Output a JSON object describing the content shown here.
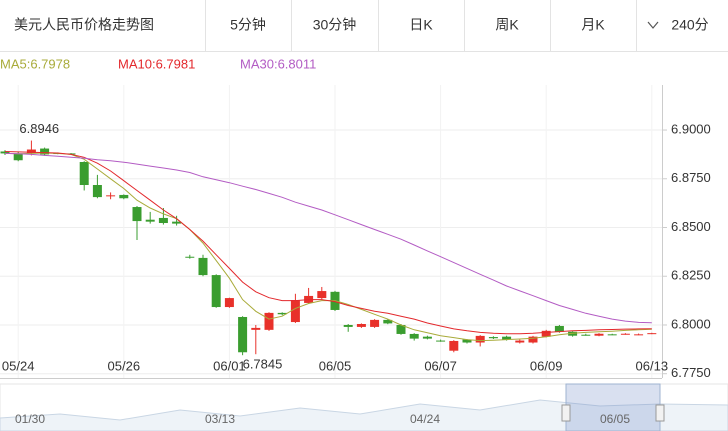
{
  "header": {
    "title": "美元人民币价格走势图",
    "tabs": [
      "5分钟",
      "30分钟",
      "日K",
      "周K",
      "月K",
      "240分"
    ]
  },
  "chart_data": {
    "type": "candlestick",
    "categories": [
      null,
      "05/24",
      null,
      null,
      null,
      null,
      null,
      null,
      null,
      "05/26",
      null,
      null,
      null,
      null,
      null,
      null,
      null,
      "06/01",
      null,
      null,
      null,
      null,
      null,
      null,
      null,
      "06/05",
      null,
      null,
      null,
      null,
      null,
      null,
      null,
      "06/07",
      null,
      null,
      null,
      null,
      null,
      null,
      null,
      "06/09",
      null,
      null,
      null,
      null,
      null,
      null,
      null,
      "06/13"
    ],
    "open": [
      6.889,
      6.888,
      6.888,
      6.8905,
      6.8882,
      6.888,
      6.8836,
      6.8718,
      6.866,
      6.8667,
      6.8605,
      6.854,
      6.8549,
      6.853,
      6.835,
      6.8344,
      6.8256,
      6.8092,
      6.8041,
      6.7975,
      6.7975,
      6.8062,
      6.8015,
      6.8113,
      6.8138,
      6.817,
      6.8,
      6.799,
      6.799,
      6.8026,
      6.8,
      6.7954,
      6.794,
      6.792,
      6.7868,
      6.7925,
      6.791,
      6.7938,
      6.794,
      6.791,
      6.791,
      6.794,
      6.7995,
      6.7965,
      6.795,
      6.7945,
      6.7952,
      6.7952,
      6.795,
      6.7955
    ],
    "close": [
      6.888,
      6.8845,
      6.89,
      6.8875,
      6.888,
      6.8878,
      6.8718,
      6.8656,
      6.8665,
      6.865,
      6.8533,
      6.853,
      6.8523,
      6.852,
      6.8345,
      6.8256,
      6.8092,
      6.8138,
      6.786,
      6.7985,
      6.8062,
      6.8055,
      6.8128,
      6.8149,
      6.8174,
      6.8077,
      6.799,
      6.8005,
      6.8026,
      6.8008,
      6.7954,
      6.793,
      6.793,
      6.7918,
      6.7918,
      6.791,
      6.7944,
      6.7932,
      6.7925,
      6.792,
      6.794,
      6.797,
      6.7965,
      6.7945,
      6.7948,
      6.7955,
      6.795,
      6.7955,
      6.7952,
      6.7958
    ],
    "high": [
      6.8897,
      6.889,
      6.8946,
      6.891,
      6.8885,
      6.8882,
      6.884,
      6.877,
      6.868,
      6.867,
      6.861,
      6.858,
      6.86,
      6.856,
      6.836,
      6.836,
      6.826,
      6.814,
      6.8045,
      6.8,
      6.8065,
      6.8065,
      6.816,
      6.819,
      6.8195,
      6.8175,
      6.8005,
      6.8008,
      6.803,
      6.803,
      6.8005,
      6.7958,
      6.7945,
      6.7925,
      6.7922,
      6.7928,
      6.7948,
      6.7942,
      6.7945,
      6.7925,
      6.7944,
      6.7975,
      6.8,
      6.7968,
      6.7955,
      6.7958,
      6.7955,
      6.7958,
      6.7956,
      6.796
    ],
    "low": [
      6.8872,
      6.884,
      6.887,
      6.8868,
      6.8876,
      6.8874,
      6.869,
      6.865,
      6.8645,
      6.8645,
      6.8436,
      6.852,
      6.8515,
      6.851,
      6.834,
      6.825,
      6.8088,
      6.8088,
      6.7845,
      6.785,
      6.797,
      6.805,
      6.801,
      6.8108,
      6.8132,
      6.8072,
      6.7965,
      6.7985,
      6.7985,
      6.8004,
      6.795,
      6.792,
      6.7926,
      6.7914,
      6.786,
      6.7905,
      6.789,
      6.7928,
      6.792,
      6.7905,
      6.7905,
      6.7936,
      6.796,
      6.794,
      6.7945,
      6.7942,
      6.7948,
      6.795,
      6.7948,
      6.7953
    ],
    "up_color": "#e8312a",
    "down_color": "#3a9d2f",
    "series": [
      {
        "name": "MA5:6.7978",
        "color": "#a9ab3a",
        "values": [
          6.888,
          6.8878,
          6.888,
          6.8882,
          6.888,
          6.8875,
          6.885,
          6.88,
          6.875,
          6.87,
          6.864,
          6.86,
          6.857,
          6.8545,
          6.849,
          6.842,
          6.833,
          6.824,
          6.813,
          6.807,
          6.803,
          6.8045,
          6.8085,
          6.811,
          6.8125,
          6.8125,
          6.8105,
          6.808,
          6.8055,
          6.803,
          6.8,
          6.7975,
          6.796,
          6.7945,
          6.7935,
          6.7925,
          6.792,
          6.7922,
          6.7925,
          6.7928,
          6.7932,
          6.794,
          6.795,
          6.7958,
          6.7962,
          6.7965,
          6.7968,
          6.7972,
          6.7975,
          6.7978
        ]
      },
      {
        "name": "MA10:6.7981",
        "color": "#e3282c",
        "values": [
          6.889,
          6.8888,
          6.8886,
          6.8884,
          6.8882,
          6.8875,
          6.886,
          6.883,
          6.879,
          6.874,
          6.869,
          6.864,
          6.859,
          6.8545,
          6.849,
          6.843,
          6.836,
          6.829,
          6.822,
          6.817,
          6.814,
          6.8125,
          6.8125,
          6.813,
          6.813,
          6.812,
          6.81,
          6.8085,
          6.807,
          6.806,
          6.8045,
          6.803,
          6.801,
          6.7995,
          6.798,
          6.797,
          6.7962,
          6.7958,
          6.7955,
          6.7955,
          6.7958,
          6.7962,
          6.7966,
          6.797,
          6.7972,
          6.7975,
          6.7977,
          6.7979,
          6.798,
          6.7981
        ]
      },
      {
        "name": "MA30:6.8011",
        "color": "#b35cc4",
        "values": [
          6.888,
          6.8878,
          6.8875,
          6.887,
          6.8865,
          6.886,
          6.8855,
          6.8848,
          6.8842,
          6.8835,
          6.8825,
          6.8815,
          6.8805,
          6.8795,
          6.8782,
          6.876,
          6.8745,
          6.873,
          6.8712,
          6.8695,
          6.8675,
          6.8655,
          6.863,
          6.861,
          6.859,
          6.8565,
          6.854,
          6.8515,
          6.849,
          6.8465,
          6.844,
          6.841,
          6.838,
          6.835,
          6.832,
          6.829,
          6.826,
          6.823,
          6.82,
          6.8175,
          6.815,
          6.8125,
          6.81,
          6.808,
          6.806,
          6.8045,
          6.803,
          6.802,
          6.8013,
          6.8011
        ]
      }
    ],
    "ylim": [
      6.7728,
      6.9231
    ],
    "yticks": [
      {
        "value": 6.775,
        "label": "6.7750"
      },
      {
        "value": 6.8,
        "label": "6.8000"
      },
      {
        "value": 6.825,
        "label": "6.8250"
      },
      {
        "value": 6.85,
        "label": "6.8500"
      },
      {
        "value": 6.875,
        "label": "6.8750"
      },
      {
        "value": 6.9,
        "label": "6.9000"
      }
    ],
    "grid": true
  },
  "navigator": {
    "labels": [
      "01/30",
      "03/13",
      "04/24",
      "06/05"
    ]
  }
}
